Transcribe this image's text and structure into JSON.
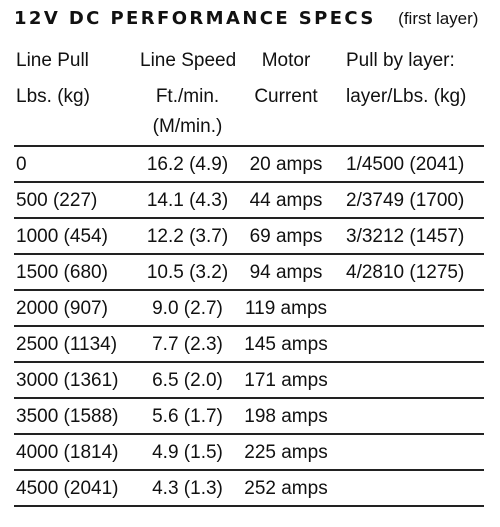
{
  "title": "12V DC PERFORMANCE SPECS",
  "subtitle": "(first layer)",
  "headers": {
    "col1_line1": "Line Pull",
    "col1_line2": "Lbs. (kg)",
    "col2_line1": "Line Speed",
    "col2_line2": "Ft./min.",
    "col2_line3": "(M/min.)",
    "col3_line1": "Motor",
    "col3_line2": "Current",
    "col4_line1": "Pull by layer:",
    "col4_line2": "layer/Lbs. (kg)"
  },
  "rows": [
    {
      "pull": "0",
      "speed": "16.2 (4.9)",
      "current": "20 amps",
      "layer": "1/4500 (2041)"
    },
    {
      "pull": "500 (227)",
      "speed": "14.1 (4.3)",
      "current": "44 amps",
      "layer": "2/3749 (1700)"
    },
    {
      "pull": "1000 (454)",
      "speed": "12.2 (3.7)",
      "current": "69 amps",
      "layer": "3/3212 (1457)"
    },
    {
      "pull": "1500 (680)",
      "speed": "10.5 (3.2)",
      "current": "94 amps",
      "layer": "4/2810 (1275)"
    },
    {
      "pull": "2000 (907)",
      "speed": "9.0 (2.7)",
      "current": "119 amps",
      "layer": ""
    },
    {
      "pull": "2500 (1134)",
      "speed": "7.7 (2.3)",
      "current": "145 amps",
      "layer": ""
    },
    {
      "pull": "3000 (1361)",
      "speed": "6.5 (2.0)",
      "current": "171 amps",
      "layer": ""
    },
    {
      "pull": "3500 (1588)",
      "speed": "5.6 (1.7)",
      "current": "198 amps",
      "layer": ""
    },
    {
      "pull": "4000 (1814)",
      "speed": "4.9 (1.5)",
      "current": "225 amps",
      "layer": ""
    },
    {
      "pull": "4500 (2041)",
      "speed": "4.3 (1.3)",
      "current": "252 amps",
      "layer": ""
    }
  ]
}
